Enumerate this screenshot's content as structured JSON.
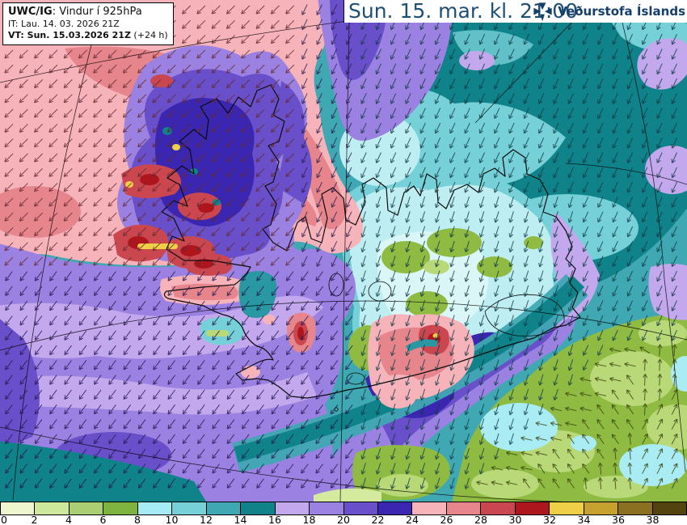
{
  "header": {
    "line1_bold": "UWC/IG",
    "line1_rest": ": Vindur í 925hPa",
    "line2": "IT: Lau. 14. 03. 2026 21Z",
    "line3_bold": "VT: Sun. 15.03.2026 21Z",
    "line3_rest": " (+24 h)"
  },
  "topbar": {
    "datetime": "Sun. 15. mar. kl. 21:00",
    "brand": "Veðurstofa Íslands",
    "datetime_color": "#1d4e74",
    "brand_color": "#153f6a"
  },
  "colorbar": {
    "labels": [
      "0",
      "2",
      "4",
      "6",
      "8",
      "10",
      "12",
      "14",
      "16",
      "18",
      "20",
      "22",
      "24",
      "26",
      "28",
      "30",
      "32",
      "34",
      "36",
      "38"
    ],
    "colors": [
      "#eef6cf",
      "#cde79b",
      "#a9cf72",
      "#7fb33f",
      "#a6ecf6",
      "#76d0d8",
      "#3fa8b2",
      "#108289",
      "#c3a8ee",
      "#9b82e2",
      "#6950ca",
      "#3a26b1",
      "#f7b3ba",
      "#e7858d",
      "#ca4750",
      "#ae161e",
      "#efcf45",
      "#c7a130",
      "#8a7020",
      "#52430f"
    ],
    "description": "wind speed bands (m/s), 0 to 40 in steps of 2"
  }
}
